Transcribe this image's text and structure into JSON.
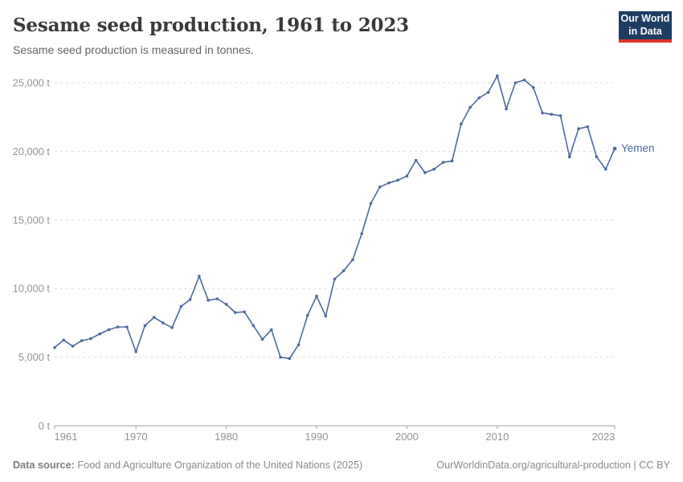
{
  "header": {
    "title": "Sesame seed production, 1961 to 2023",
    "subtitle": "Sesame seed production is measured in tonnes."
  },
  "logo": {
    "line1": "Our World",
    "line2": "in Data"
  },
  "footer": {
    "source_label": "Data source:",
    "source_text": " Food and Agriculture Organization of the United Nations (2025)",
    "credit": "OurWorldinData.org/agricultural-production | CC BY"
  },
  "colors": {
    "line": "#4C6A9C",
    "grid": "#dedede",
    "axis": "#a1a1a1",
    "tick_text": "#949494",
    "series_label": "#4C6A9C",
    "logo_bg": "#1d3d63",
    "logo_stripe": "#e0342c"
  },
  "chart_data": {
    "type": "line",
    "title": "Sesame seed production, 1961 to 2023",
    "subtitle": "Sesame seed production is measured in tonnes.",
    "unit": "tonnes",
    "xlim": [
      1961,
      2023
    ],
    "ylim": [
      0,
      25000
    ],
    "grid": "horizontal dashed lines at 5,000 t steps",
    "legend_position": "label at end of line",
    "xticks": [
      1961,
      1970,
      1980,
      1990,
      2000,
      2010,
      2023
    ],
    "yticks": [
      {
        "value": 0,
        "label": "0 t"
      },
      {
        "value": 5000,
        "label": "5,000 t"
      },
      {
        "value": 10000,
        "label": "10,000 t"
      },
      {
        "value": 15000,
        "label": "15,000 t"
      },
      {
        "value": 20000,
        "label": "20,000 t"
      },
      {
        "value": 25000,
        "label": "25,000 t"
      }
    ],
    "x": [
      1961,
      1962,
      1963,
      1964,
      1965,
      1966,
      1967,
      1968,
      1969,
      1970,
      1971,
      1972,
      1973,
      1974,
      1975,
      1976,
      1977,
      1978,
      1979,
      1980,
      1981,
      1982,
      1983,
      1984,
      1985,
      1986,
      1987,
      1988,
      1989,
      1990,
      1991,
      1992,
      1993,
      1994,
      1995,
      1996,
      1997,
      1998,
      1999,
      2000,
      2001,
      2002,
      2003,
      2004,
      2005,
      2006,
      2007,
      2008,
      2009,
      2010,
      2011,
      2012,
      2013,
      2014,
      2015,
      2016,
      2017,
      2018,
      2019,
      2020,
      2021,
      2022,
      2023
    ],
    "series": [
      {
        "name": "Yemen",
        "color": "#4C6A9C",
        "values": [
          5700,
          6250,
          5800,
          6200,
          6350,
          6700,
          7000,
          7200,
          7200,
          5400,
          7300,
          7900,
          7500,
          7150,
          8700,
          9200,
          10900,
          9150,
          9250,
          8850,
          8250,
          8300,
          7300,
          6300,
          7000,
          5000,
          4900,
          5900,
          8050,
          9450,
          8000,
          10700,
          11300,
          12100,
          14000,
          16200,
          17400,
          17700,
          17900,
          18200,
          19350,
          18450,
          18700,
          19200,
          19300,
          22000,
          23200,
          23900,
          24300,
          25500,
          23100,
          25000,
          25200,
          24650,
          22800,
          22700,
          22600,
          19600,
          21650,
          21800,
          19600,
          18700,
          20200
        ]
      }
    ]
  }
}
